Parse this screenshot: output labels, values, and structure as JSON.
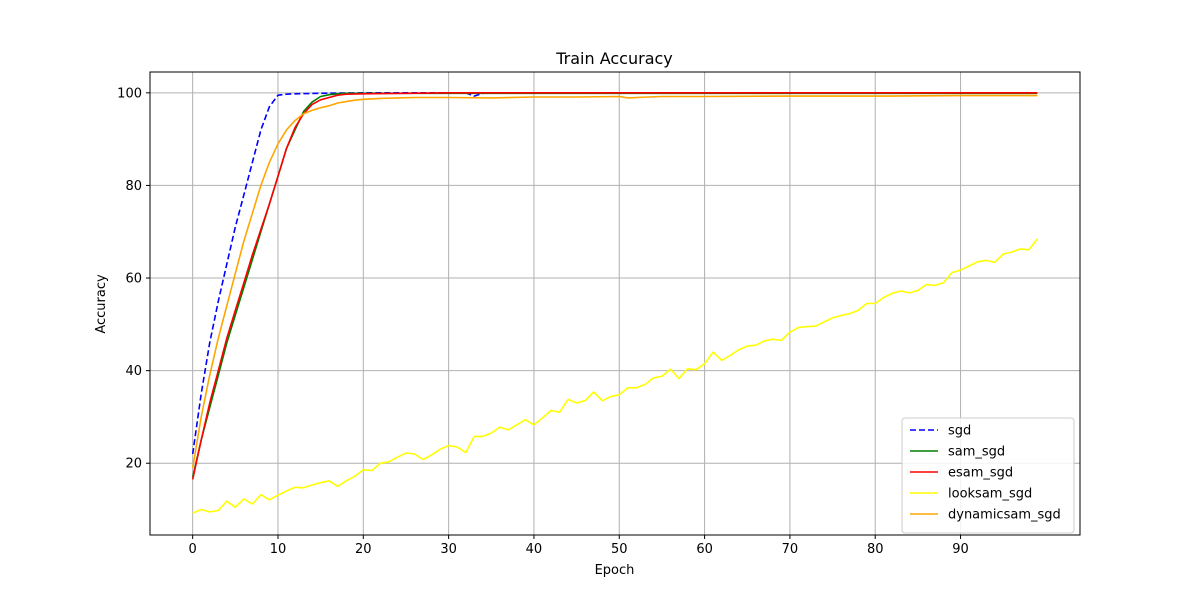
{
  "chart_data": {
    "type": "line",
    "title": "Train Accuracy",
    "xlabel": "Epoch",
    "ylabel": "Accuracy",
    "xlim": [
      -5,
      104
    ],
    "ylim": [
      4.5,
      104.5
    ],
    "xticks": [
      0,
      10,
      20,
      30,
      40,
      50,
      60,
      70,
      80,
      90
    ],
    "yticks": [
      20,
      40,
      60,
      80,
      100
    ],
    "grid": true,
    "legend_position": "lower-right",
    "series": [
      {
        "name": "sgd",
        "color": "#0000ff",
        "style": "dashed",
        "x": [
          0,
          1,
          2,
          3,
          4,
          5,
          6,
          7,
          8,
          9,
          10,
          11,
          12,
          15,
          20,
          25,
          30,
          32,
          33,
          34,
          35,
          40,
          50,
          60,
          70,
          80,
          90,
          99
        ],
        "y": [
          22,
          35,
          46,
          55,
          63,
          71,
          78,
          85,
          92,
          97,
          99.5,
          99.7,
          99.8,
          99.9,
          100,
          100,
          100,
          100,
          99.3,
          99.9,
          100,
          100,
          100,
          100,
          100,
          100,
          100,
          100
        ]
      },
      {
        "name": "sam_sgd",
        "color": "#008000",
        "style": "solid",
        "x": [
          0,
          1,
          2,
          3,
          4,
          5,
          6,
          7,
          8,
          9,
          10,
          11,
          12,
          13,
          14,
          15,
          16,
          17,
          18,
          20,
          25,
          30,
          40,
          50,
          60,
          70,
          80,
          90,
          99
        ],
        "y": [
          17,
          25,
          32,
          39,
          46,
          52,
          58,
          64,
          70,
          76,
          82,
          88,
          92,
          96,
          98,
          99.2,
          99.6,
          99.8,
          99.9,
          99.9,
          99.9,
          99.9,
          99.9,
          99.9,
          99.9,
          99.9,
          99.9,
          99.9,
          99.9
        ]
      },
      {
        "name": "esam_sgd",
        "color": "#ff0000",
        "style": "solid",
        "x": [
          0,
          1,
          2,
          3,
          4,
          5,
          6,
          7,
          8,
          9,
          10,
          11,
          12,
          13,
          14,
          15,
          16,
          17,
          18,
          20,
          25,
          30,
          40,
          50,
          60,
          70,
          80,
          90,
          99
        ],
        "y": [
          16.5,
          25,
          33,
          40,
          47,
          53,
          59,
          65,
          70.5,
          76,
          82,
          88,
          92.5,
          95.5,
          97.5,
          98.5,
          99,
          99.5,
          99.7,
          99.8,
          99.9,
          100,
          100,
          100,
          100,
          100,
          100,
          100,
          100
        ]
      },
      {
        "name": "looksam_sgd",
        "color": "#ffff00",
        "style": "solid",
        "x": [
          0,
          1,
          2,
          3,
          4,
          5,
          6,
          7,
          8,
          9,
          10,
          11,
          12,
          13,
          14,
          15,
          16,
          17,
          18,
          19,
          20,
          21,
          22,
          23,
          24,
          25,
          26,
          27,
          28,
          29,
          30,
          31,
          32,
          33,
          34,
          35,
          36,
          37,
          38,
          39,
          40,
          41,
          42,
          43,
          44,
          45,
          46,
          47,
          48,
          49,
          50,
          51,
          52,
          53,
          54,
          55,
          56,
          57,
          58,
          59,
          60,
          61,
          62,
          63,
          64,
          65,
          66,
          67,
          68,
          69,
          70,
          71,
          72,
          73,
          74,
          75,
          76,
          77,
          78,
          79,
          80,
          81,
          82,
          83,
          84,
          85,
          86,
          87,
          88,
          89,
          90,
          91,
          92,
          93,
          94,
          95,
          96,
          97,
          98,
          99
        ],
        "y": [
          9.2,
          10,
          9.5,
          9.8,
          11.8,
          10.5,
          12.3,
          11.2,
          13.2,
          12.1,
          13.1,
          14,
          14.8,
          14.7,
          15.3,
          15.8,
          16.2,
          15,
          16.2,
          17.2,
          18.6,
          18.4,
          20,
          20.3,
          21.3,
          22.2,
          22,
          20.8,
          21.8,
          23,
          23.8,
          23.5,
          22.3,
          25.8,
          25.8,
          26.5,
          27.8,
          27.2,
          28.3,
          29.4,
          28.3,
          29.8,
          31.4,
          31,
          33.8,
          33,
          33.5,
          35.4,
          33.5,
          34.4,
          34.8,
          36.3,
          36.3,
          37,
          38.4,
          38.8,
          40.3,
          38.3,
          40.4,
          40.2,
          41.5,
          44,
          42.2,
          43.3,
          44.5,
          45.3,
          45.5,
          46.4,
          46.8,
          46.5,
          48.3,
          49.3,
          49.5,
          49.6,
          50.5,
          51.4,
          51.9,
          52.3,
          53,
          54.5,
          54.5,
          55.8,
          56.7,
          57.2,
          56.8,
          57.3,
          58.6,
          58.4,
          59,
          61.2,
          61.7,
          62.6,
          63.5,
          63.8,
          63.4,
          65.2,
          65.6,
          66.3,
          66.1,
          68.4
        ]
      },
      {
        "name": "dynamicsam_sgd",
        "color": "#ffa500",
        "style": "solid",
        "x": [
          0,
          1,
          2,
          3,
          4,
          5,
          6,
          7,
          8,
          9,
          10,
          11,
          12,
          13,
          14,
          15,
          16,
          17,
          18,
          19,
          20,
          22,
          24,
          26,
          28,
          30,
          35,
          40,
          45,
          50,
          51,
          52,
          55,
          60,
          70,
          80,
          90,
          99
        ],
        "y": [
          19,
          30,
          39,
          47,
          54,
          61,
          68,
          74,
          80,
          85,
          89,
          92,
          94,
          95.5,
          96.2,
          96.8,
          97.2,
          97.8,
          98.1,
          98.4,
          98.6,
          98.8,
          98.9,
          99,
          99,
          99,
          98.9,
          99.1,
          99.1,
          99.2,
          98.9,
          99,
          99.2,
          99.2,
          99.3,
          99.3,
          99.4,
          99.4
        ]
      }
    ]
  }
}
